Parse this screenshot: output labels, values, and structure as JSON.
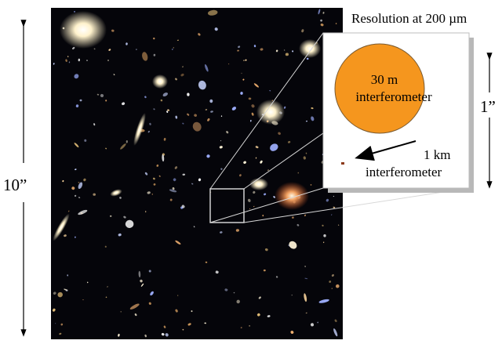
{
  "figure": {
    "title": "Resolution at 200 µm",
    "field_size_label": "10”",
    "inset_scale_label": "1”",
    "large_beam": {
      "label_line1": "30 m",
      "label_line2": "interferometer",
      "color": "#F5961E"
    },
    "small_beam": {
      "label_line1": "1 km",
      "label_line2": "interferometer",
      "color": "#8B3A1A"
    },
    "background_color": "#05050a"
  }
}
